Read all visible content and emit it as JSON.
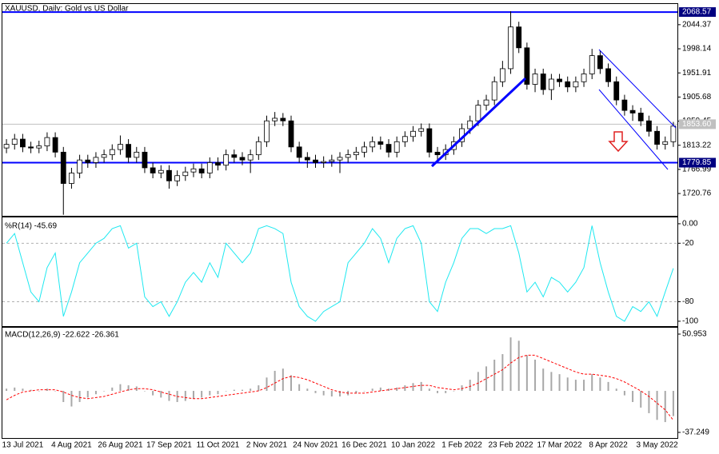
{
  "chart_data": [
    {
      "type": "candlestick",
      "title": "XAUUSD, Daily:  Gold vs US Dollar",
      "categories": [
        null,
        null,
        "13 Jul 2021",
        null,
        null,
        null,
        null,
        null,
        "4 Aug 2021",
        null,
        null,
        null,
        null,
        null,
        "26 Aug 2021",
        null,
        null,
        null,
        null,
        null,
        "17 Sep 2021",
        null,
        null,
        null,
        null,
        null,
        "11 Oct 2021",
        null,
        null,
        null,
        null,
        null,
        "2 Nov 2021",
        null,
        null,
        null,
        null,
        null,
        "24 Nov 2021",
        null,
        null,
        null,
        null,
        null,
        "16 Dec 2021",
        null,
        null,
        null,
        null,
        null,
        "10 Jan 2022",
        null,
        null,
        null,
        null,
        null,
        "1 Feb 2022",
        null,
        null,
        null,
        null,
        null,
        "23 Feb 2022",
        null,
        null,
        null,
        null,
        null,
        "17 Mar 2022",
        null,
        null,
        null,
        null,
        null,
        "8 Apr 2022",
        null,
        null,
        null,
        null,
        null,
        "3 May 2022",
        null,
        null
      ],
      "open": [
        1808,
        1815,
        1825,
        1810,
        1808,
        1812,
        1828,
        1800,
        1740,
        1760,
        1785,
        1780,
        1790,
        1795,
        1805,
        1815,
        1790,
        1800,
        1770,
        1760,
        1765,
        1745,
        1755,
        1762,
        1768,
        1760,
        1780,
        1775,
        1795,
        1790,
        1785,
        1795,
        1820,
        1860,
        1865,
        1860,
        1810,
        1790,
        1785,
        1780,
        1782,
        1785,
        1790,
        1795,
        1800,
        1810,
        1820,
        1815,
        1800,
        1820,
        1830,
        1840,
        1845,
        1800,
        1795,
        1805,
        1820,
        1845,
        1860,
        1890,
        1900,
        1935,
        1960,
        2040,
        2000,
        1930,
        1950,
        1920,
        1940,
        1935,
        1925,
        1935,
        1950,
        1985,
        1960,
        1935,
        1900,
        1880,
        1875,
        1860,
        1840,
        1815,
        1820
      ],
      "high": [
        1825,
        1835,
        1835,
        1820,
        1822,
        1838,
        1838,
        1810,
        1770,
        1795,
        1795,
        1800,
        1805,
        1815,
        1832,
        1825,
        1810,
        1810,
        1780,
        1775,
        1775,
        1765,
        1772,
        1778,
        1778,
        1790,
        1790,
        1805,
        1805,
        1800,
        1805,
        1830,
        1870,
        1877,
        1875,
        1870,
        1820,
        1800,
        1795,
        1792,
        1795,
        1800,
        1805,
        1810,
        1820,
        1830,
        1830,
        1825,
        1830,
        1840,
        1850,
        1855,
        1855,
        1810,
        1815,
        1830,
        1855,
        1870,
        1900,
        1910,
        1945,
        1975,
        2070,
        2050,
        2010,
        1960,
        1960,
        1950,
        1950,
        1945,
        1945,
        1960,
        1998,
        1995,
        1970,
        1945,
        1910,
        1890,
        1885,
        1870,
        1850,
        1830,
        1858
      ],
      "low": [
        1798,
        1805,
        1800,
        1798,
        1798,
        1802,
        1790,
        1680,
        1730,
        1750,
        1770,
        1770,
        1780,
        1785,
        1795,
        1780,
        1780,
        1760,
        1750,
        1750,
        1730,
        1735,
        1745,
        1752,
        1750,
        1750,
        1765,
        1765,
        1780,
        1775,
        1760,
        1785,
        1810,
        1850,
        1850,
        1800,
        1780,
        1770,
        1770,
        1770,
        1772,
        1760,
        1780,
        1785,
        1790,
        1800,
        1805,
        1790,
        1790,
        1810,
        1820,
        1830,
        1790,
        1785,
        1785,
        1795,
        1810,
        1835,
        1850,
        1880,
        1890,
        1925,
        1950,
        1990,
        1920,
        1915,
        1910,
        1900,
        1925,
        1915,
        1915,
        1925,
        1940,
        1950,
        1925,
        1890,
        1870,
        1860,
        1850,
        1830,
        1805,
        1805,
        1810
      ],
      "close": [
        1815,
        1825,
        1810,
        1808,
        1812,
        1828,
        1800,
        1740,
        1760,
        1785,
        1780,
        1790,
        1795,
        1805,
        1815,
        1790,
        1800,
        1770,
        1760,
        1765,
        1745,
        1755,
        1762,
        1768,
        1760,
        1780,
        1775,
        1795,
        1790,
        1785,
        1795,
        1820,
        1860,
        1865,
        1860,
        1810,
        1790,
        1785,
        1780,
        1782,
        1785,
        1790,
        1795,
        1800,
        1810,
        1820,
        1815,
        1800,
        1820,
        1830,
        1840,
        1845,
        1800,
        1795,
        1805,
        1820,
        1845,
        1860,
        1890,
        1900,
        1935,
        1960,
        2040,
        2000,
        1930,
        1950,
        1920,
        1940,
        1935,
        1925,
        1935,
        1950,
        1985,
        1960,
        1935,
        1900,
        1880,
        1875,
        1860,
        1840,
        1815,
        1820,
        1850
      ],
      "up_color": "#ffffff",
      "down_color": "#000000",
      "line_color": "#000000",
      "ylim": [
        1678,
        2084
      ],
      "yticks": [
        2044.37,
        1998.14,
        1951.91,
        1905.68,
        1859.45,
        1813.22,
        1766.99,
        1720.76
      ],
      "price_lines": [
        {
          "value": 2068.57,
          "label": "2068.57",
          "color": "#0000ff",
          "box": "#000080"
        },
        {
          "value": 1779.85,
          "label": "1779.85",
          "color": "#0000ff",
          "box": "#000080"
        },
        {
          "value": 1853.6,
          "label": "1853.60",
          "color": "#c0c0c0",
          "box": "#c0c0c0"
        }
      ]
    },
    {
      "type": "line",
      "title": "%R(14) -45.69",
      "values": [
        -20,
        -10,
        -40,
        -70,
        -80,
        -45,
        -30,
        -95,
        -70,
        -40,
        -30,
        -20,
        -15,
        -5,
        -2,
        -25,
        -20,
        -75,
        -85,
        -80,
        -95,
        -80,
        -60,
        -50,
        -60,
        -40,
        -55,
        -20,
        -30,
        -40,
        -30,
        -5,
        -2,
        -5,
        -10,
        -60,
        -85,
        -95,
        -100,
        -90,
        -85,
        -80,
        -40,
        -30,
        -20,
        -5,
        -15,
        -40,
        -15,
        -5,
        -2,
        -20,
        -80,
        -90,
        -60,
        -40,
        -15,
        -5,
        -5,
        -10,
        -5,
        -5,
        -2,
        -30,
        -70,
        -60,
        -75,
        -55,
        -60,
        -70,
        -60,
        -45,
        -2,
        -40,
        -70,
        -95,
        -100,
        -85,
        -90,
        -80,
        -95,
        -70,
        -45.69
      ],
      "color": "#1ee8f0",
      "ylim": [
        -105,
        6.5
      ],
      "yticks": [
        {
          "value": 0,
          "label": "0.00"
        },
        -20,
        -80,
        -100
      ],
      "grid_levels": [
        -20,
        -80
      ]
    },
    {
      "type": "macd",
      "title": "MACD(12,26,9) -22.622 -26.361",
      "series": [
        {
          "style": "bar",
          "color": "#a8a8a8",
          "values": [
            2,
            3,
            2,
            1,
            0,
            2,
            0,
            -10,
            -14,
            -10,
            -6,
            -3,
            0,
            3,
            6,
            5,
            4,
            0,
            -4,
            -6,
            -9,
            -10,
            -9,
            -7,
            -6,
            -4,
            -3,
            0,
            1,
            1,
            2,
            5,
            12,
            18,
            20,
            14,
            6,
            2,
            -2,
            -4,
            -5,
            -5,
            -4,
            -2,
            0,
            2,
            3,
            2,
            3,
            5,
            7,
            8,
            2,
            -2,
            -2,
            0,
            5,
            10,
            17,
            22,
            28,
            33,
            48,
            45,
            32,
            28,
            20,
            17,
            15,
            12,
            10,
            10,
            15,
            12,
            8,
            2,
            -4,
            -10,
            -15,
            -20,
            -26,
            -28,
            -22.622
          ]
        },
        {
          "style": "dashed-line",
          "color": "#ff0000",
          "values": [
            -8,
            -4,
            -1,
            0,
            1,
            1,
            1,
            -1,
            -4,
            -6,
            -7,
            -6,
            -5,
            -3,
            -1,
            1,
            2,
            2,
            1,
            -1,
            -3,
            -5,
            -6,
            -7,
            -7,
            -6,
            -5,
            -4,
            -3,
            -2,
            -1,
            0,
            3,
            7,
            11,
            13,
            12,
            10,
            7,
            4,
            1,
            -1,
            -2,
            -2,
            -2,
            -1,
            0,
            1,
            2,
            3,
            4,
            5,
            5,
            3,
            2,
            1,
            2,
            4,
            7,
            11,
            15,
            19,
            25,
            30,
            32,
            32,
            29,
            26,
            23,
            20,
            17,
            15,
            15,
            14,
            13,
            11,
            8,
            4,
            0,
            -5,
            -11,
            -17,
            -26.361
          ]
        }
      ],
      "ylim": [
        -42.3,
        56.7
      ],
      "yticks": [
        50.953,
        -37.249
      ]
    }
  ]
}
